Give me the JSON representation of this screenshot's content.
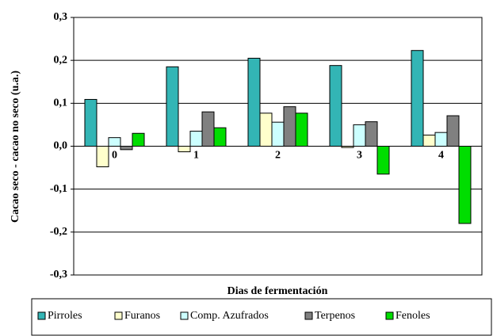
{
  "chart_data": {
    "type": "bar",
    "y_label": "Cacao seco - cacao no seco (u.a.)",
    "x_label": "Dias de fermentación",
    "categories": [
      "0",
      "1",
      "2",
      "3",
      "4"
    ],
    "series": [
      {
        "name": "Pirroles",
        "color": "#33b5b5",
        "values": [
          0.109,
          0.185,
          0.205,
          0.188,
          0.223
        ]
      },
      {
        "name": "Furanos",
        "color": "#ffffcc",
        "values": [
          -0.048,
          -0.013,
          0.077,
          -0.003,
          0.026
        ]
      },
      {
        "name": "Comp. Azufrados",
        "color": "#ccffff",
        "values": [
          0.02,
          0.035,
          0.056,
          0.05,
          0.032
        ]
      },
      {
        "name": "Terpenos",
        "color": "#808080",
        "values": [
          -0.008,
          0.08,
          0.092,
          0.057,
          0.071
        ]
      },
      {
        "name": "Fenoles",
        "color": "#00dd00",
        "values": [
          0.03,
          0.043,
          0.077,
          -0.065,
          -0.18
        ]
      }
    ],
    "ylim": [
      -0.3,
      0.3
    ],
    "yticks": [
      {
        "value": -0.3,
        "label": "-0,3"
      },
      {
        "value": -0.2,
        "label": "-0,2"
      },
      {
        "value": -0.1,
        "label": "-0,1"
      },
      {
        "value": 0,
        "label": "0,0"
      },
      {
        "value": 0.1,
        "label": "0,1"
      },
      {
        "value": 0.2,
        "label": "0,2"
      },
      {
        "value": 0.3,
        "label": "0,3"
      }
    ],
    "grid": true
  }
}
